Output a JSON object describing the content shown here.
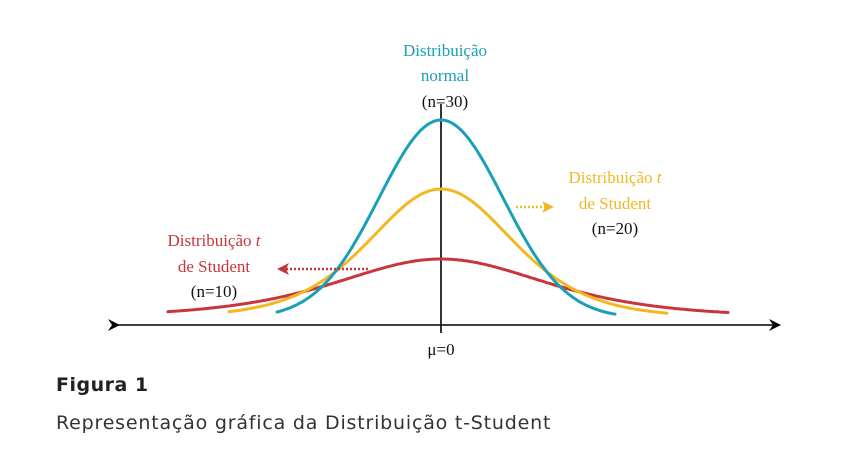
{
  "colors": {
    "normal": "#1aa0b8",
    "student_n20": "#f2b824",
    "student_n10": "#c8353b",
    "axis": "#000000"
  },
  "labels": {
    "normal_line1": "Distribuição",
    "normal_line2": "normal",
    "normal_n": "(n=30)",
    "n20_line1": "Distribuição",
    "n20_t": "t",
    "n20_line2": "de Student",
    "n20_n": "(n=20)",
    "n10_line1": "Distribuição",
    "n10_t": "t",
    "n10_line2": "de Student",
    "n10_n": "(n=10)",
    "mu": "μ=0"
  },
  "caption": {
    "title": "Figura 1",
    "subtitle": "Representação gráfica da Distribuição t-Student"
  }
}
